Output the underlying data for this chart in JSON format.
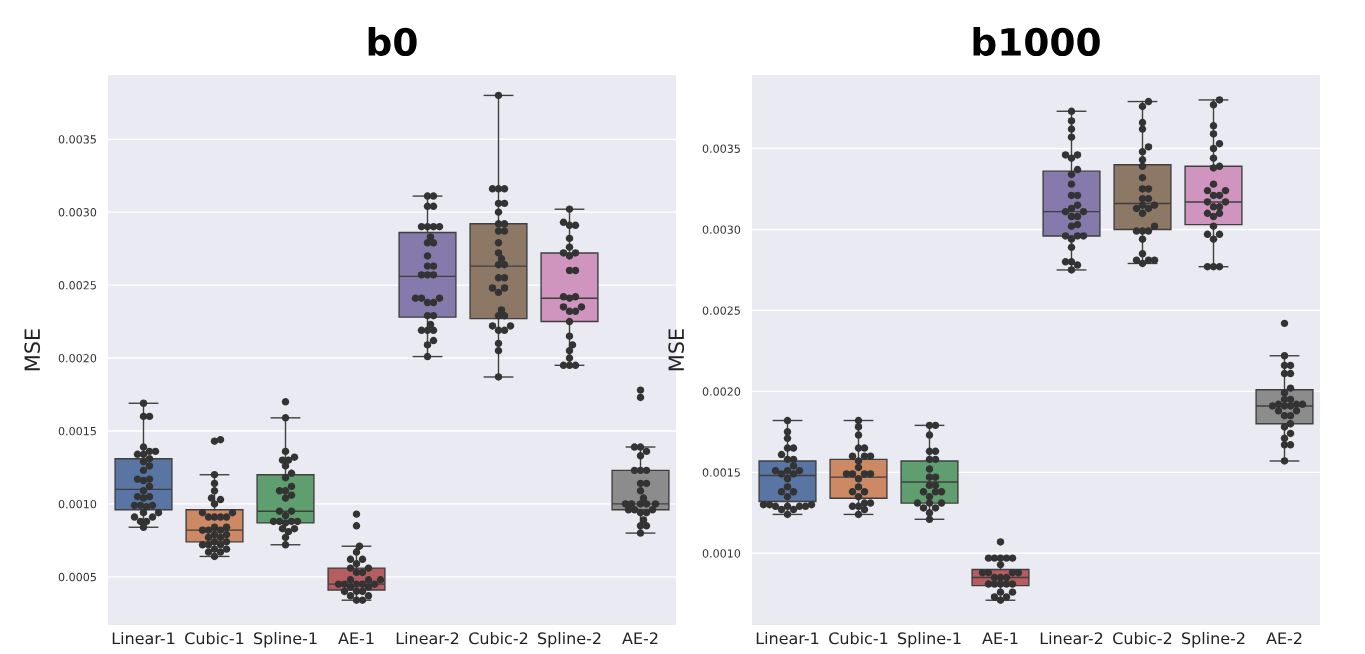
{
  "chart_data": [
    {
      "type": "box",
      "title": "b0",
      "ylabel": "MSE",
      "categories": [
        "Linear-1",
        "Cubic-1",
        "Spline-1",
        "AE-1",
        "Linear-2",
        "Cubic-2",
        "Spline-2",
        "AE-2"
      ],
      "colors": [
        "#5875a4",
        "#cc8963",
        "#5f9e6e",
        "#b55d60",
        "#857aab",
        "#8d7866",
        "#d095bf",
        "#8c8c8c"
      ],
      "boxes": [
        {
          "low": 0.00084,
          "q1": 0.00096,
          "median": 0.0011,
          "q3": 0.00131,
          "high": 0.00169
        },
        {
          "low": 0.00064,
          "q1": 0.00074,
          "median": 0.00082,
          "q3": 0.00096,
          "high": 0.0012
        },
        {
          "low": 0.00072,
          "q1": 0.00087,
          "median": 0.00095,
          "q3": 0.0012,
          "high": 0.00159
        },
        {
          "low": 0.00034,
          "q1": 0.00041,
          "median": 0.00045,
          "q3": 0.00056,
          "high": 0.00071
        },
        {
          "low": 0.00201,
          "q1": 0.00228,
          "median": 0.00256,
          "q3": 0.00286,
          "high": 0.00311
        },
        {
          "low": 0.00187,
          "q1": 0.00227,
          "median": 0.00263,
          "q3": 0.00292,
          "high": 0.0038
        },
        {
          "low": 0.00195,
          "q1": 0.00225,
          "median": 0.00241,
          "q3": 0.00272,
          "high": 0.00302
        },
        {
          "low": 0.0008,
          "q1": 0.00096,
          "median": 0.001,
          "q3": 0.00123,
          "high": 0.00139
        }
      ],
      "series": [
        {
          "type": "scatter",
          "color": "#333333",
          "x": [
            "Linear-1",
            "Linear-1",
            "Linear-1",
            "Linear-1",
            "Linear-1",
            "Linear-1",
            "Linear-1",
            "Linear-1",
            "Linear-1",
            "Linear-1",
            "Linear-1",
            "Linear-1",
            "Linear-1",
            "Linear-1",
            "Linear-1",
            "Linear-1",
            "Linear-1",
            "Linear-1",
            "Linear-1",
            "Linear-1",
            "Linear-1",
            "Linear-1",
            "Linear-1",
            "Linear-1",
            "Linear-1",
            "Linear-1",
            "Linear-1",
            "Linear-1",
            "Linear-1",
            "Linear-1",
            "Linear-1"
          ],
          "values": [
            0.00169,
            0.0016,
            0.0016,
            0.00139,
            0.00136,
            0.00136,
            0.00134,
            0.00134,
            0.00131,
            0.00129,
            0.00126,
            0.00123,
            0.00117,
            0.00117,
            0.00116,
            0.00112,
            0.00109,
            0.00105,
            0.00105,
            0.00104,
            0.00099,
            0.00099,
            0.00099,
            0.00098,
            0.00094,
            0.00094,
            0.00091,
            0.00091,
            0.00088,
            0.00088,
            0.00084
          ]
        },
        {
          "type": "scatter",
          "color": "#333333",
          "x": [
            "Cubic-1",
            "Cubic-1",
            "Cubic-1",
            "Cubic-1",
            "Cubic-1",
            "Cubic-1",
            "Cubic-1",
            "Cubic-1",
            "Cubic-1",
            "Cubic-1",
            "Cubic-1",
            "Cubic-1",
            "Cubic-1",
            "Cubic-1",
            "Cubic-1",
            "Cubic-1",
            "Cubic-1",
            "Cubic-1",
            "Cubic-1",
            "Cubic-1",
            "Cubic-1",
            "Cubic-1",
            "Cubic-1",
            "Cubic-1",
            "Cubic-1",
            "Cubic-1",
            "Cubic-1",
            "Cubic-1",
            "Cubic-1",
            "Cubic-1",
            "Cubic-1",
            "Cubic-1",
            "Cubic-1"
          ],
          "values": [
            0.00144,
            0.00143,
            0.0012,
            0.00114,
            0.00109,
            0.00104,
            0.00103,
            0.001,
            0.00094,
            0.00094,
            0.00091,
            0.00091,
            0.00091,
            0.00091,
            0.00084,
            0.00084,
            0.00082,
            0.00082,
            0.00082,
            0.00079,
            0.00079,
            0.00077,
            0.00077,
            0.00074,
            0.00074,
            0.00072,
            0.00072,
            0.00072,
            0.00069,
            0.00069,
            0.00067,
            0.00067,
            0.00064
          ]
        },
        {
          "type": "scatter",
          "color": "#333333",
          "x": [
            "Spline-1",
            "Spline-1",
            "Spline-1",
            "Spline-1",
            "Spline-1",
            "Spline-1",
            "Spline-1",
            "Spline-1",
            "Spline-1",
            "Spline-1",
            "Spline-1",
            "Spline-1",
            "Spline-1",
            "Spline-1",
            "Spline-1",
            "Spline-1",
            "Spline-1",
            "Spline-1",
            "Spline-1",
            "Spline-1",
            "Spline-1",
            "Spline-1",
            "Spline-1",
            "Spline-1",
            "Spline-1",
            "Spline-1",
            "Spline-1"
          ],
          "values": [
            0.0017,
            0.00159,
            0.00136,
            0.00132,
            0.0013,
            0.0013,
            0.00126,
            0.00121,
            0.00118,
            0.00112,
            0.00109,
            0.00109,
            0.00106,
            0.00104,
            0.00095,
            0.00095,
            0.00092,
            0.00088,
            0.00088,
            0.00088,
            0.00088,
            0.00087,
            0.00083,
            0.00083,
            0.00081,
            0.00077,
            0.00072
          ]
        },
        {
          "type": "scatter",
          "color": "#333333",
          "x": [
            "AE-1",
            "AE-1",
            "AE-1",
            "AE-1",
            "AE-1",
            "AE-1",
            "AE-1",
            "AE-1",
            "AE-1",
            "AE-1",
            "AE-1",
            "AE-1",
            "AE-1",
            "AE-1",
            "AE-1",
            "AE-1",
            "AE-1",
            "AE-1",
            "AE-1",
            "AE-1",
            "AE-1",
            "AE-1",
            "AE-1",
            "AE-1",
            "AE-1",
            "AE-1",
            "AE-1",
            "AE-1"
          ],
          "values": [
            0.00093,
            0.00085,
            0.00071,
            0.00067,
            0.00062,
            0.00062,
            0.00059,
            0.00056,
            0.00056,
            0.00053,
            0.00053,
            0.00048,
            0.00048,
            0.00048,
            0.00045,
            0.00045,
            0.00045,
            0.00045,
            0.00045,
            0.00043,
            0.00043,
            0.0004,
            0.0004,
            0.0004,
            0.00037,
            0.00037,
            0.00034,
            0.00034
          ]
        },
        {
          "type": "scatter",
          "color": "#333333",
          "x": [
            "Linear-2",
            "Linear-2",
            "Linear-2",
            "Linear-2",
            "Linear-2",
            "Linear-2",
            "Linear-2",
            "Linear-2",
            "Linear-2",
            "Linear-2",
            "Linear-2",
            "Linear-2",
            "Linear-2",
            "Linear-2",
            "Linear-2",
            "Linear-2",
            "Linear-2",
            "Linear-2",
            "Linear-2",
            "Linear-2",
            "Linear-2",
            "Linear-2",
            "Linear-2",
            "Linear-2",
            "Linear-2",
            "Linear-2",
            "Linear-2",
            "Linear-2",
            "Linear-2",
            "Linear-2",
            "Linear-2"
          ],
          "values": [
            0.00311,
            0.00311,
            0.00304,
            0.00304,
            0.0029,
            0.0029,
            0.0029,
            0.0029,
            0.00283,
            0.00279,
            0.00279,
            0.0027,
            0.00263,
            0.00263,
            0.00257,
            0.00257,
            0.00257,
            0.00241,
            0.00241,
            0.00241,
            0.00238,
            0.00238,
            0.00229,
            0.00229,
            0.00223,
            0.00219,
            0.00219,
            0.00219,
            0.00212,
            0.00209,
            0.00201
          ]
        },
        {
          "type": "scatter",
          "color": "#333333",
          "x": [
            "Cubic-2",
            "Cubic-2",
            "Cubic-2",
            "Cubic-2",
            "Cubic-2",
            "Cubic-2",
            "Cubic-2",
            "Cubic-2",
            "Cubic-2",
            "Cubic-2",
            "Cubic-2",
            "Cubic-2",
            "Cubic-2",
            "Cubic-2",
            "Cubic-2",
            "Cubic-2",
            "Cubic-2",
            "Cubic-2",
            "Cubic-2",
            "Cubic-2",
            "Cubic-2",
            "Cubic-2",
            "Cubic-2",
            "Cubic-2",
            "Cubic-2",
            "Cubic-2",
            "Cubic-2",
            "Cubic-2",
            "Cubic-2",
            "Cubic-2",
            "Cubic-2"
          ],
          "values": [
            0.0038,
            0.00316,
            0.00316,
            0.00316,
            0.00306,
            0.00306,
            0.003,
            0.00292,
            0.00292,
            0.00287,
            0.00287,
            0.00279,
            0.00272,
            0.00268,
            0.00264,
            0.00264,
            0.00255,
            0.00255,
            0.00248,
            0.00248,
            0.00245,
            0.00233,
            0.00229,
            0.00229,
            0.00222,
            0.00222,
            0.00219,
            0.00219,
            0.0021,
            0.00205,
            0.00187
          ]
        },
        {
          "type": "scatter",
          "color": "#333333",
          "x": [
            "Spline-2",
            "Spline-2",
            "Spline-2",
            "Spline-2",
            "Spline-2",
            "Spline-2",
            "Spline-2",
            "Spline-2",
            "Spline-2",
            "Spline-2",
            "Spline-2",
            "Spline-2",
            "Spline-2",
            "Spline-2",
            "Spline-2",
            "Spline-2",
            "Spline-2",
            "Spline-2",
            "Spline-2",
            "Spline-2",
            "Spline-2",
            "Spline-2",
            "Spline-2",
            "Spline-2",
            "Spline-2",
            "Spline-2"
          ],
          "values": [
            0.00302,
            0.00293,
            0.00291,
            0.00291,
            0.00282,
            0.00276,
            0.00272,
            0.00272,
            0.0027,
            0.0026,
            0.0026,
            0.00242,
            0.00242,
            0.00241,
            0.00235,
            0.00235,
            0.00232,
            0.00232,
            0.00225,
            0.00215,
            0.00209,
            0.00205,
            0.002,
            0.00195,
            0.00195,
            0.00195
          ]
        },
        {
          "type": "scatter",
          "color": "#333333",
          "x": [
            "AE-2",
            "AE-2",
            "AE-2",
            "AE-2",
            "AE-2",
            "AE-2",
            "AE-2",
            "AE-2",
            "AE-2",
            "AE-2",
            "AE-2",
            "AE-2",
            "AE-2",
            "AE-2",
            "AE-2",
            "AE-2",
            "AE-2",
            "AE-2",
            "AE-2",
            "AE-2",
            "AE-2",
            "AE-2",
            "AE-2",
            "AE-2",
            "AE-2",
            "AE-2",
            "AE-2"
          ],
          "values": [
            0.00178,
            0.00173,
            0.00139,
            0.00139,
            0.00136,
            0.00133,
            0.00123,
            0.00123,
            0.00123,
            0.00114,
            0.00114,
            0.00109,
            0.00104,
            0.001,
            0.001,
            0.001,
            0.001,
            0.001,
            0.00096,
            0.00096,
            0.00096,
            0.00094,
            0.00094,
            0.00089,
            0.00085,
            0.00085,
            0.0008
          ]
        }
      ],
      "ylim": [
        0.00017,
        0.00394
      ],
      "yticks": [
        0.0005,
        {
          "value": 0.001,
          "label": "0.0010"
        },
        0.0015,
        {
          "value": 0.002,
          "label": "0.0020"
        },
        0.0025,
        {
          "value": 0.003,
          "label": "0.0030"
        },
        0.0035
      ],
      "grid": "y",
      "legend": false
    },
    {
      "type": "box",
      "title": "b1000",
      "ylabel": "MSE",
      "categories": [
        "Linear-1",
        "Cubic-1",
        "Spline-1",
        "AE-1",
        "Linear-2",
        "Cubic-2",
        "Spline-2",
        "AE-2"
      ],
      "colors": [
        "#5875a4",
        "#cc8963",
        "#5f9e6e",
        "#b55d60",
        "#857aab",
        "#8d7866",
        "#d095bf",
        "#8c8c8c"
      ],
      "boxes": [
        {
          "low": 0.00124,
          "q1": 0.00132,
          "median": 0.00148,
          "q3": 0.00157,
          "high": 0.00182
        },
        {
          "low": 0.00124,
          "q1": 0.00134,
          "median": 0.00147,
          "q3": 0.00158,
          "high": 0.00182
        },
        {
          "low": 0.00121,
          "q1": 0.00131,
          "median": 0.00144,
          "q3": 0.00157,
          "high": 0.00179
        },
        {
          "low": 0.00071,
          "q1": 0.0008,
          "median": 0.00085,
          "q3": 0.0009,
          "high": 0.00097
        },
        {
          "low": 0.00275,
          "q1": 0.00296,
          "median": 0.00311,
          "q3": 0.00336,
          "high": 0.00373
        },
        {
          "low": 0.00279,
          "q1": 0.003,
          "median": 0.00316,
          "q3": 0.0034,
          "high": 0.00379
        },
        {
          "low": 0.00277,
          "q1": 0.00303,
          "median": 0.00317,
          "q3": 0.00339,
          "high": 0.0038
        },
        {
          "low": 0.00157,
          "q1": 0.0018,
          "median": 0.00191,
          "q3": 0.00201,
          "high": 0.00222
        }
      ],
      "series": [
        {
          "type": "scatter",
          "color": "#333333",
          "x": [
            "Linear-1",
            "Linear-1",
            "Linear-1",
            "Linear-1",
            "Linear-1",
            "Linear-1",
            "Linear-1",
            "Linear-1",
            "Linear-1",
            "Linear-1",
            "Linear-1",
            "Linear-1",
            "Linear-1",
            "Linear-1",
            "Linear-1",
            "Linear-1",
            "Linear-1",
            "Linear-1",
            "Linear-1",
            "Linear-1",
            "Linear-1",
            "Linear-1",
            "Linear-1",
            "Linear-1",
            "Linear-1",
            "Linear-1",
            "Linear-1",
            "Linear-1",
            "Linear-1"
          ],
          "values": [
            0.00182,
            0.00175,
            0.00171,
            0.00165,
            0.00165,
            0.00161,
            0.00158,
            0.00158,
            0.00154,
            0.00151,
            0.00151,
            0.00151,
            0.00149,
            0.00149,
            0.00146,
            0.00141,
            0.00138,
            0.00138,
            0.00135,
            0.0013,
            0.0013,
            0.0013,
            0.00129,
            0.00129,
            0.00129,
            0.00129,
            0.00127,
            0.00127,
            0.00124
          ]
        },
        {
          "type": "scatter",
          "color": "#333333",
          "x": [
            "Cubic-1",
            "Cubic-1",
            "Cubic-1",
            "Cubic-1",
            "Cubic-1",
            "Cubic-1",
            "Cubic-1",
            "Cubic-1",
            "Cubic-1",
            "Cubic-1",
            "Cubic-1",
            "Cubic-1",
            "Cubic-1",
            "Cubic-1",
            "Cubic-1",
            "Cubic-1",
            "Cubic-1",
            "Cubic-1",
            "Cubic-1",
            "Cubic-1",
            "Cubic-1",
            "Cubic-1",
            "Cubic-1",
            "Cubic-1",
            "Cubic-1"
          ],
          "values": [
            0.00182,
            0.00178,
            0.00173,
            0.00165,
            0.00165,
            0.0016,
            0.0016,
            0.0016,
            0.00157,
            0.00153,
            0.00149,
            0.00149,
            0.00149,
            0.00149,
            0.00146,
            0.00141,
            0.00138,
            0.00138,
            0.00135,
            0.00131,
            0.00131,
            0.00129,
            0.00129,
            0.00127,
            0.00124
          ]
        },
        {
          "type": "scatter",
          "color": "#333333",
          "x": [
            "Spline-1",
            "Spline-1",
            "Spline-1",
            "Spline-1",
            "Spline-1",
            "Spline-1",
            "Spline-1",
            "Spline-1",
            "Spline-1",
            "Spline-1",
            "Spline-1",
            "Spline-1",
            "Spline-1",
            "Spline-1",
            "Spline-1",
            "Spline-1",
            "Spline-1",
            "Spline-1",
            "Spline-1",
            "Spline-1",
            "Spline-1",
            "Spline-1",
            "Spline-1"
          ],
          "values": [
            0.00179,
            0.00179,
            0.00173,
            0.00163,
            0.00163,
            0.00158,
            0.00158,
            0.00152,
            0.00147,
            0.00147,
            0.00142,
            0.00142,
            0.00138,
            0.00138,
            0.00138,
            0.00135,
            0.00131,
            0.00131,
            0.00131,
            0.00128,
            0.00128,
            0.00125,
            0.00121
          ]
        },
        {
          "type": "scatter",
          "color": "#333333",
          "x": [
            "AE-1",
            "AE-1",
            "AE-1",
            "AE-1",
            "AE-1",
            "AE-1",
            "AE-1",
            "AE-1",
            "AE-1",
            "AE-1",
            "AE-1",
            "AE-1",
            "AE-1",
            "AE-1",
            "AE-1",
            "AE-1",
            "AE-1",
            "AE-1",
            "AE-1",
            "AE-1",
            "AE-1",
            "AE-1",
            "AE-1",
            "AE-1"
          ],
          "values": [
            0.00107,
            0.00097,
            0.00097,
            0.00097,
            0.00097,
            0.00097,
            0.00093,
            0.00088,
            0.00088,
            0.00088,
            0.00088,
            0.00085,
            0.00085,
            0.00085,
            0.00081,
            0.00081,
            0.00081,
            0.00081,
            0.00081,
            0.00076,
            0.00076,
            0.00073,
            0.00073,
            0.00071
          ]
        },
        {
          "type": "scatter",
          "color": "#333333",
          "x": [
            "Linear-2",
            "Linear-2",
            "Linear-2",
            "Linear-2",
            "Linear-2",
            "Linear-2",
            "Linear-2",
            "Linear-2",
            "Linear-2",
            "Linear-2",
            "Linear-2",
            "Linear-2",
            "Linear-2",
            "Linear-2",
            "Linear-2",
            "Linear-2",
            "Linear-2",
            "Linear-2",
            "Linear-2",
            "Linear-2",
            "Linear-2",
            "Linear-2",
            "Linear-2",
            "Linear-2",
            "Linear-2",
            "Linear-2",
            "Linear-2",
            "Linear-2",
            "Linear-2"
          ],
          "values": [
            0.00373,
            0.00367,
            0.00362,
            0.00357,
            0.00346,
            0.00346,
            0.00344,
            0.00337,
            0.00334,
            0.00328,
            0.00321,
            0.00321,
            0.00315,
            0.00313,
            0.00311,
            0.00311,
            0.00308,
            0.00308,
            0.00303,
            0.00302,
            0.00296,
            0.00296,
            0.00296,
            0.00294,
            0.00289,
            0.0028,
            0.0028,
            0.00278,
            0.00275
          ]
        },
        {
          "type": "scatter",
          "color": "#333333",
          "x": [
            "Cubic-2",
            "Cubic-2",
            "Cubic-2",
            "Cubic-2",
            "Cubic-2",
            "Cubic-2",
            "Cubic-2",
            "Cubic-2",
            "Cubic-2",
            "Cubic-2",
            "Cubic-2",
            "Cubic-2",
            "Cubic-2",
            "Cubic-2",
            "Cubic-2",
            "Cubic-2",
            "Cubic-2",
            "Cubic-2",
            "Cubic-2",
            "Cubic-2",
            "Cubic-2",
            "Cubic-2",
            "Cubic-2",
            "Cubic-2",
            "Cubic-2",
            "Cubic-2",
            "Cubic-2",
            "Cubic-2"
          ],
          "values": [
            0.00379,
            0.00376,
            0.00366,
            0.00362,
            0.00351,
            0.00348,
            0.00343,
            0.00339,
            0.00332,
            0.00325,
            0.00325,
            0.00319,
            0.00319,
            0.00315,
            0.00315,
            0.00313,
            0.00313,
            0.0031,
            0.00302,
            0.00299,
            0.00299,
            0.00299,
            0.00294,
            0.00285,
            0.00281,
            0.00281,
            0.00281,
            0.00279
          ]
        },
        {
          "type": "scatter",
          "color": "#333333",
          "x": [
            "Spline-2",
            "Spline-2",
            "Spline-2",
            "Spline-2",
            "Spline-2",
            "Spline-2",
            "Spline-2",
            "Spline-2",
            "Spline-2",
            "Spline-2",
            "Spline-2",
            "Spline-2",
            "Spline-2",
            "Spline-2",
            "Spline-2",
            "Spline-2",
            "Spline-2",
            "Spline-2",
            "Spline-2",
            "Spline-2",
            "Spline-2",
            "Spline-2",
            "Spline-2",
            "Spline-2",
            "Spline-2",
            "Spline-2",
            "Spline-2",
            "Spline-2"
          ],
          "values": [
            0.0038,
            0.00377,
            0.00364,
            0.00359,
            0.00353,
            0.0035,
            0.00344,
            0.00339,
            0.00338,
            0.00328,
            0.00324,
            0.00324,
            0.00321,
            0.00321,
            0.00317,
            0.00317,
            0.00314,
            0.00314,
            0.0031,
            0.0031,
            0.00308,
            0.00302,
            0.00297,
            0.00297,
            0.00294,
            0.00277,
            0.00277,
            0.00277
          ]
        },
        {
          "type": "scatter",
          "color": "#333333",
          "x": [
            "AE-2",
            "AE-2",
            "AE-2",
            "AE-2",
            "AE-2",
            "AE-2",
            "AE-2",
            "AE-2",
            "AE-2",
            "AE-2",
            "AE-2",
            "AE-2",
            "AE-2",
            "AE-2",
            "AE-2",
            "AE-2",
            "AE-2",
            "AE-2",
            "AE-2",
            "AE-2",
            "AE-2",
            "AE-2",
            "AE-2",
            "AE-2",
            "AE-2",
            "AE-2",
            "AE-2"
          ],
          "values": [
            0.00242,
            0.00222,
            0.00216,
            0.00216,
            0.00211,
            0.00211,
            0.00202,
            0.00199,
            0.00195,
            0.00195,
            0.00192,
            0.00192,
            0.00192,
            0.00191,
            0.00191,
            0.00191,
            0.00188,
            0.00188,
            0.00185,
            0.00185,
            0.0018,
            0.00178,
            0.00174,
            0.00171,
            0.00167,
            0.00167,
            0.00157
          ]
        }
      ],
      "ylim": [
        0.000557,
        0.003954
      ],
      "yticks": [
        {
          "value": 0.001,
          "label": "0.0010"
        },
        0.0015,
        {
          "value": 0.002,
          "label": "0.0020"
        },
        0.0025,
        {
          "value": 0.003,
          "label": "0.0030"
        },
        0.0035
      ],
      "grid": "y",
      "legend": false
    }
  ]
}
